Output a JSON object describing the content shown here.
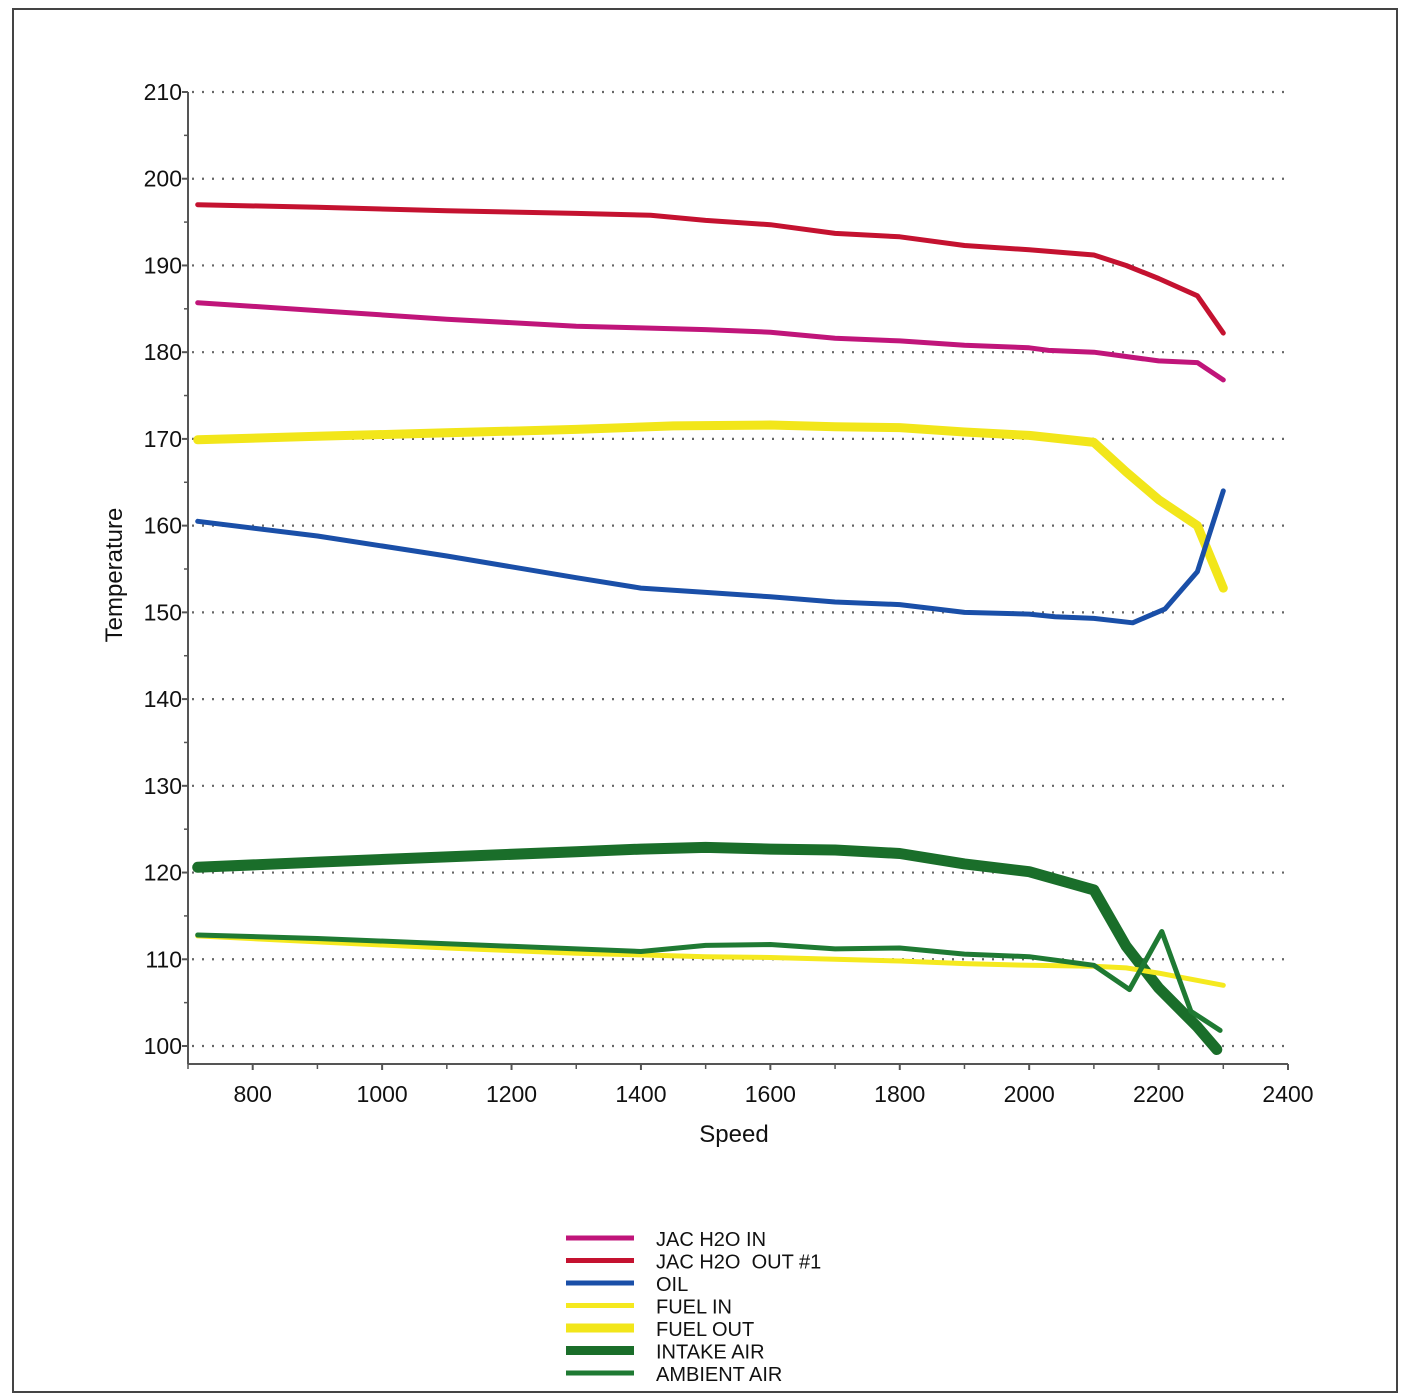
{
  "chart_data": {
    "type": "line",
    "title": "",
    "xlabel": "Speed",
    "ylabel": "Temperature",
    "xlim": [
      700,
      2400
    ],
    "ylim": [
      100,
      210
    ],
    "x_ticks": [
      "800",
      "1000",
      "1200",
      "1400",
      "1600",
      "1800",
      "2000",
      "2200",
      "2400"
    ],
    "x_tick_values": [
      800,
      1000,
      1200,
      1400,
      1600,
      1800,
      2000,
      2200,
      2400
    ],
    "y_ticks": [
      "100",
      "110",
      "120",
      "130",
      "140",
      "150",
      "160",
      "170",
      "180",
      "190",
      "200",
      "210"
    ],
    "y_tick_values": [
      100,
      110,
      120,
      130,
      140,
      150,
      160,
      170,
      180,
      190,
      200,
      210
    ],
    "grid": "horizontal dotted",
    "legend_position": "bottom-center",
    "series": [
      {
        "name": "JAC H2O IN",
        "color": "#c0157a",
        "width": 5,
        "points": [
          [
            715,
            185.7
          ],
          [
            900,
            184.8
          ],
          [
            1100,
            183.8
          ],
          [
            1300,
            183.0
          ],
          [
            1400,
            182.8
          ],
          [
            1500,
            182.6
          ],
          [
            1600,
            182.3
          ],
          [
            1700,
            181.6
          ],
          [
            1800,
            181.3
          ],
          [
            1900,
            180.8
          ],
          [
            2000,
            180.5
          ],
          [
            2030,
            180.2
          ],
          [
            2100,
            180.0
          ],
          [
            2150,
            179.5
          ],
          [
            2200,
            179.0
          ],
          [
            2260,
            178.8
          ],
          [
            2300,
            176.8
          ]
        ]
      },
      {
        "name": "JAC H2O  OUT #1",
        "color": "#c41230",
        "width": 5,
        "points": [
          [
            715,
            197.0
          ],
          [
            900,
            196.7
          ],
          [
            1100,
            196.3
          ],
          [
            1300,
            196.0
          ],
          [
            1415,
            195.8
          ],
          [
            1500,
            195.2
          ],
          [
            1600,
            194.7
          ],
          [
            1700,
            193.7
          ],
          [
            1800,
            193.3
          ],
          [
            1900,
            192.3
          ],
          [
            2000,
            191.8
          ],
          [
            2100,
            191.2
          ],
          [
            2150,
            190.0
          ],
          [
            2200,
            188.5
          ],
          [
            2260,
            186.5
          ],
          [
            2300,
            182.2
          ]
        ]
      },
      {
        "name": "OIL",
        "color": "#1a4fa8",
        "width": 5,
        "points": [
          [
            715,
            160.5
          ],
          [
            900,
            158.8
          ],
          [
            1100,
            156.5
          ],
          [
            1300,
            154.0
          ],
          [
            1400,
            152.8
          ],
          [
            1500,
            152.3
          ],
          [
            1600,
            151.8
          ],
          [
            1700,
            151.2
          ],
          [
            1800,
            150.9
          ],
          [
            1900,
            150.0
          ],
          [
            2000,
            149.8
          ],
          [
            2040,
            149.5
          ],
          [
            2100,
            149.3
          ],
          [
            2160,
            148.8
          ],
          [
            2210,
            150.4
          ],
          [
            2260,
            154.7
          ],
          [
            2300,
            164.0
          ]
        ]
      },
      {
        "name": "FUEL IN",
        "color": "#f5e91f",
        "width": 5,
        "points": [
          [
            715,
            112.7
          ],
          [
            900,
            112.0
          ],
          [
            1100,
            111.3
          ],
          [
            1300,
            110.7
          ],
          [
            1400,
            110.5
          ],
          [
            1500,
            110.3
          ],
          [
            1600,
            110.2
          ],
          [
            1700,
            110.0
          ],
          [
            1800,
            109.8
          ],
          [
            1900,
            109.5
          ],
          [
            2000,
            109.3
          ],
          [
            2100,
            109.2
          ],
          [
            2150,
            109.0
          ],
          [
            2200,
            108.4
          ],
          [
            2300,
            107.0
          ]
        ]
      },
      {
        "name": "FUEL OUT",
        "color": "#f2e61a",
        "width": 9,
        "points": [
          [
            715,
            169.9
          ],
          [
            900,
            170.3
          ],
          [
            1100,
            170.7
          ],
          [
            1300,
            171.1
          ],
          [
            1450,
            171.5
          ],
          [
            1600,
            171.6
          ],
          [
            1700,
            171.4
          ],
          [
            1800,
            171.3
          ],
          [
            1900,
            170.8
          ],
          [
            2000,
            170.4
          ],
          [
            2100,
            169.6
          ],
          [
            2150,
            166.2
          ],
          [
            2200,
            163.0
          ],
          [
            2260,
            160.0
          ],
          [
            2300,
            152.8
          ]
        ]
      },
      {
        "name": "INTAKE AIR",
        "color": "#1a6e2a",
        "width": 11,
        "points": [
          [
            715,
            120.6
          ],
          [
            900,
            121.2
          ],
          [
            1100,
            121.8
          ],
          [
            1300,
            122.4
          ],
          [
            1400,
            122.7
          ],
          [
            1500,
            122.9
          ],
          [
            1600,
            122.7
          ],
          [
            1700,
            122.6
          ],
          [
            1800,
            122.2
          ],
          [
            1900,
            121.0
          ],
          [
            2000,
            120.1
          ],
          [
            2100,
            118.0
          ],
          [
            2150,
            111.5
          ],
          [
            2200,
            106.7
          ],
          [
            2260,
            102.2
          ],
          [
            2290,
            99.6
          ]
        ]
      },
      {
        "name": "AMBIENT AIR",
        "color": "#1f7a33",
        "width": 5,
        "points": [
          [
            715,
            112.8
          ],
          [
            900,
            112.4
          ],
          [
            1100,
            111.8
          ],
          [
            1300,
            111.2
          ],
          [
            1400,
            110.9
          ],
          [
            1500,
            111.6
          ],
          [
            1600,
            111.7
          ],
          [
            1700,
            111.2
          ],
          [
            1800,
            111.3
          ],
          [
            1900,
            110.6
          ],
          [
            2000,
            110.3
          ],
          [
            2050,
            109.8
          ],
          [
            2100,
            109.3
          ],
          [
            2155,
            106.5
          ],
          [
            2205,
            113.2
          ],
          [
            2250,
            104.0
          ],
          [
            2295,
            101.8
          ]
        ]
      }
    ]
  }
}
